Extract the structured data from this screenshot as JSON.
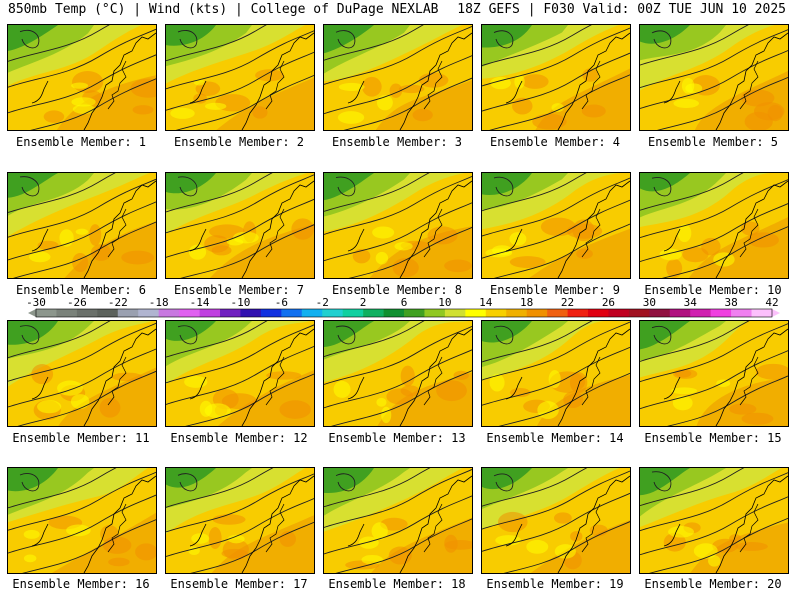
{
  "header": {
    "left_title": "850mb Temp (°C) | Wind (kts) | College of DuPage NEXLAB",
    "right_title": "18Z GEFS | F030 Valid: 00Z TUE JUN 10 2025"
  },
  "member_label_prefix": "Ensemble Member: ",
  "panels": [
    {
      "member": 1,
      "label": "Ensemble Member: 1"
    },
    {
      "member": 2,
      "label": "Ensemble Member: 2"
    },
    {
      "member": 3,
      "label": "Ensemble Member: 3"
    },
    {
      "member": 4,
      "label": "Ensemble Member: 4"
    },
    {
      "member": 5,
      "label": "Ensemble Member: 5"
    },
    {
      "member": 6,
      "label": "Ensemble Member: 6"
    },
    {
      "member": 7,
      "label": "Ensemble Member: 7"
    },
    {
      "member": 8,
      "label": "Ensemble Member: 8"
    },
    {
      "member": 9,
      "label": "Ensemble Member: 9"
    },
    {
      "member": 10,
      "label": "Ensemble Member: 10"
    },
    {
      "member": 11,
      "label": "Ensemble Member: 11"
    },
    {
      "member": 12,
      "label": "Ensemble Member: 12"
    },
    {
      "member": 13,
      "label": "Ensemble Member: 13"
    },
    {
      "member": 14,
      "label": "Ensemble Member: 14"
    },
    {
      "member": 15,
      "label": "Ensemble Member: 15"
    },
    {
      "member": 16,
      "label": "Ensemble Member: 16"
    },
    {
      "member": 17,
      "label": "Ensemble Member: 17"
    },
    {
      "member": 18,
      "label": "Ensemble Member: 18"
    },
    {
      "member": 19,
      "label": "Ensemble Member: 19"
    },
    {
      "member": 20,
      "label": "Ensemble Member: 20"
    }
  ],
  "color_scale": {
    "labels": [
      "-30",
      "-26",
      "-22",
      "-18",
      "-14",
      "-10",
      "-6",
      "-2",
      "2",
      "6",
      "10",
      "14",
      "18",
      "22",
      "26",
      "30",
      "34",
      "38",
      "42"
    ],
    "colors": [
      "#8c968c",
      "#7a827a",
      "#6a706a",
      "#5c625c",
      "#9aa0b0",
      "#b0b4d0",
      "#c878e0",
      "#e060f0",
      "#c040e0",
      "#7020c0",
      "#3010b0",
      "#1030e0",
      "#1070f0",
      "#10b0f0",
      "#20d0d0",
      "#10d0a0",
      "#10b060",
      "#109030",
      "#40a020",
      "#90c820",
      "#d0e030",
      "#ffff00",
      "#f8d000",
      "#f0b000",
      "#f09000",
      "#f06010",
      "#f02010",
      "#e00010",
      "#c00020",
      "#a01020",
      "#901040",
      "#b01080",
      "#d020b0",
      "#f040e0",
      "#f080f0",
      "#fcc0fc"
    ]
  }
}
